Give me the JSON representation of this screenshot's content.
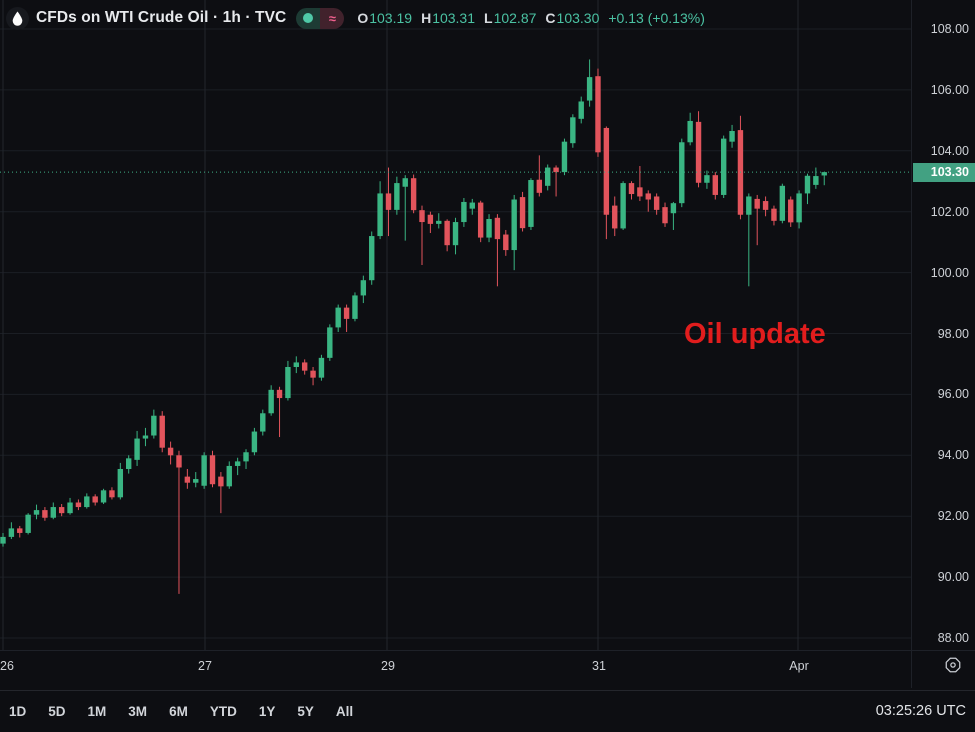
{
  "header": {
    "symbol_title": "CFDs on WTI Crude Oil · 1h · TVC",
    "status": {
      "open_dot": "market-open",
      "delayed_symbol": "≈"
    },
    "ohlc": {
      "items": [
        {
          "k": "O",
          "v": "103.19"
        },
        {
          "k": "H",
          "v": "103.31"
        },
        {
          "k": "L",
          "v": "102.87"
        },
        {
          "k": "C",
          "v": "103.30"
        }
      ],
      "change": "+0.13 (+0.13%)"
    }
  },
  "annotation": {
    "text": "Oil update"
  },
  "price_axis": {
    "labels": [
      "108.00",
      "106.00",
      "104.00",
      "102.00",
      "100.00",
      "98.00",
      "96.00",
      "94.00",
      "92.00",
      "90.00",
      "88.00"
    ],
    "last_price_label": "103.30"
  },
  "time_axis": {
    "labels": [
      {
        "text": "26",
        "x": 7
      },
      {
        "text": "27",
        "x": 205
      },
      {
        "text": "29",
        "x": 388
      },
      {
        "text": "31",
        "x": 599
      },
      {
        "text": "Apr",
        "x": 799
      }
    ]
  },
  "toolbar": {
    "ranges": [
      "1D",
      "5D",
      "1M",
      "3M",
      "6M",
      "YTD",
      "1Y",
      "5Y",
      "All"
    ],
    "clock": "03:25:26 UTC"
  },
  "colors": {
    "background": "#0d0e12",
    "up": "#3ab583",
    "down": "#e2545c",
    "grid_h": "#1b1e24",
    "grid_v": "#22252c",
    "dotted_line": "#3fae85",
    "axis_text": "#ced1d6",
    "price_label_bg": "#42a182",
    "annotation_red": "#e11d1d"
  },
  "chart_data": {
    "type": "candlestick",
    "title": "CFDs on WTI Crude Oil",
    "interval": "1h",
    "exchange": "TVC",
    "ylim": [
      88,
      108
    ],
    "grid_price_step": 2,
    "last_price": 103.3,
    "price_line_style": "dotted",
    "session_lines_x": [
      3,
      205,
      387,
      598,
      798
    ],
    "x_axis_dates": [
      "26",
      "27",
      "29",
      "31",
      "Apr"
    ],
    "candles_ohlc": [
      [
        91.1,
        91.45,
        91.0,
        91.32
      ],
      [
        91.32,
        91.8,
        91.25,
        91.6
      ],
      [
        91.6,
        91.68,
        91.3,
        91.45
      ],
      [
        91.45,
        92.1,
        91.4,
        92.05
      ],
      [
        92.05,
        92.38,
        91.9,
        92.2
      ],
      [
        92.2,
        92.3,
        91.85,
        91.95
      ],
      [
        91.95,
        92.45,
        91.9,
        92.3
      ],
      [
        92.3,
        92.4,
        92.0,
        92.1
      ],
      [
        92.1,
        92.6,
        92.05,
        92.45
      ],
      [
        92.45,
        92.55,
        92.2,
        92.3
      ],
      [
        92.3,
        92.75,
        92.25,
        92.65
      ],
      [
        92.65,
        92.72,
        92.35,
        92.45
      ],
      [
        92.45,
        92.9,
        92.4,
        92.85
      ],
      [
        92.85,
        92.95,
        92.55,
        92.62
      ],
      [
        92.62,
        93.75,
        92.55,
        93.55
      ],
      [
        93.55,
        94.0,
        93.4,
        93.9
      ],
      [
        93.85,
        94.8,
        93.65,
        94.55
      ],
      [
        94.55,
        94.9,
        94.3,
        94.65
      ],
      [
        94.65,
        95.5,
        94.55,
        95.3
      ],
      [
        95.3,
        95.45,
        94.1,
        94.25
      ],
      [
        94.25,
        94.45,
        93.7,
        94.0
      ],
      [
        94.0,
        94.15,
        89.45,
        93.6
      ],
      [
        93.3,
        93.55,
        92.9,
        93.1
      ],
      [
        93.1,
        93.45,
        92.95,
        93.22
      ],
      [
        93.0,
        94.1,
        92.9,
        94.0
      ],
      [
        94.0,
        94.15,
        92.95,
        93.05
      ],
      [
        93.3,
        93.45,
        92.1,
        92.98
      ],
      [
        92.98,
        93.8,
        92.9,
        93.65
      ],
      [
        93.65,
        93.92,
        93.35,
        93.8
      ],
      [
        93.8,
        94.2,
        93.55,
        94.1
      ],
      [
        94.1,
        94.9,
        94.0,
        94.78
      ],
      [
        94.78,
        95.5,
        94.65,
        95.38
      ],
      [
        95.38,
        96.3,
        95.3,
        96.15
      ],
      [
        96.15,
        96.25,
        94.6,
        95.88
      ],
      [
        95.88,
        97.1,
        95.8,
        96.9
      ],
      [
        96.9,
        97.25,
        96.7,
        97.05
      ],
      [
        97.05,
        97.15,
        96.65,
        96.78
      ],
      [
        96.78,
        96.9,
        96.3,
        96.55
      ],
      [
        96.55,
        97.3,
        96.45,
        97.2
      ],
      [
        97.2,
        98.3,
        97.1,
        98.2
      ],
      [
        98.2,
        98.95,
        98.05,
        98.85
      ],
      [
        98.85,
        98.95,
        98.05,
        98.48
      ],
      [
        98.48,
        99.35,
        98.4,
        99.25
      ],
      [
        99.25,
        99.9,
        99.0,
        99.75
      ],
      [
        99.75,
        101.35,
        99.6,
        101.2
      ],
      [
        101.2,
        103.0,
        101.1,
        102.6
      ],
      [
        102.6,
        103.45,
        101.2,
        102.06
      ],
      [
        102.06,
        103.15,
        101.9,
        102.94
      ],
      [
        102.82,
        103.2,
        101.05,
        103.1
      ],
      [
        103.1,
        103.22,
        101.95,
        102.05
      ],
      [
        102.05,
        102.2,
        100.25,
        101.66
      ],
      [
        101.9,
        102.0,
        101.3,
        101.6
      ],
      [
        101.6,
        101.95,
        101.45,
        101.7
      ],
      [
        101.7,
        101.75,
        100.7,
        100.9
      ],
      [
        100.9,
        101.8,
        100.6,
        101.66
      ],
      [
        101.66,
        102.45,
        101.5,
        102.32
      ],
      [
        102.1,
        102.42,
        101.9,
        102.3
      ],
      [
        102.3,
        102.36,
        101.0,
        101.15
      ],
      [
        101.15,
        101.92,
        101.0,
        101.76
      ],
      [
        101.8,
        101.92,
        99.55,
        101.1
      ],
      [
        101.25,
        101.4,
        100.55,
        100.74
      ],
      [
        100.74,
        102.55,
        100.08,
        102.4
      ],
      [
        102.48,
        102.65,
        101.35,
        101.46
      ],
      [
        101.5,
        103.1,
        101.4,
        103.04
      ],
      [
        103.05,
        103.85,
        102.5,
        102.62
      ],
      [
        102.85,
        103.55,
        102.7,
        103.45
      ],
      [
        103.45,
        103.52,
        102.5,
        103.3
      ],
      [
        103.3,
        104.4,
        103.2,
        104.3
      ],
      [
        104.25,
        105.2,
        104.1,
        105.1
      ],
      [
        105.05,
        105.78,
        104.9,
        105.62
      ],
      [
        105.65,
        107.0,
        105.45,
        106.42
      ],
      [
        106.45,
        106.7,
        103.8,
        103.95
      ],
      [
        104.75,
        104.8,
        101.1,
        101.9
      ],
      [
        102.2,
        102.5,
        101.2,
        101.45
      ],
      [
        101.45,
        103.0,
        101.4,
        102.94
      ],
      [
        102.94,
        103.0,
        102.4,
        102.58
      ],
      [
        102.8,
        103.5,
        102.35,
        102.5
      ],
      [
        102.6,
        102.7,
        102.0,
        102.4
      ],
      [
        102.5,
        102.6,
        101.9,
        102.06
      ],
      [
        102.15,
        102.3,
        101.5,
        101.62
      ],
      [
        101.95,
        102.32,
        101.4,
        102.28
      ],
      [
        102.28,
        104.4,
        102.15,
        104.28
      ],
      [
        104.28,
        105.25,
        104.18,
        104.98
      ],
      [
        104.95,
        105.3,
        102.8,
        102.95
      ],
      [
        102.95,
        103.35,
        102.75,
        103.2
      ],
      [
        103.2,
        103.3,
        102.4,
        102.55
      ],
      [
        102.55,
        104.5,
        102.45,
        104.4
      ],
      [
        104.3,
        104.85,
        104.1,
        104.65
      ],
      [
        104.68,
        105.15,
        101.75,
        101.9
      ],
      [
        101.9,
        102.6,
        99.55,
        102.5
      ],
      [
        102.42,
        102.55,
        100.9,
        102.1
      ],
      [
        102.35,
        102.5,
        101.85,
        102.06
      ],
      [
        102.1,
        102.2,
        101.55,
        101.7
      ],
      [
        101.7,
        102.92,
        101.62,
        102.85
      ],
      [
        102.4,
        102.5,
        101.5,
        101.65
      ],
      [
        101.65,
        102.7,
        101.45,
        102.6
      ],
      [
        102.6,
        103.25,
        102.25,
        103.18
      ],
      [
        102.88,
        103.45,
        102.75,
        103.17
      ],
      [
        103.19,
        103.31,
        102.87,
        103.3
      ]
    ]
  }
}
